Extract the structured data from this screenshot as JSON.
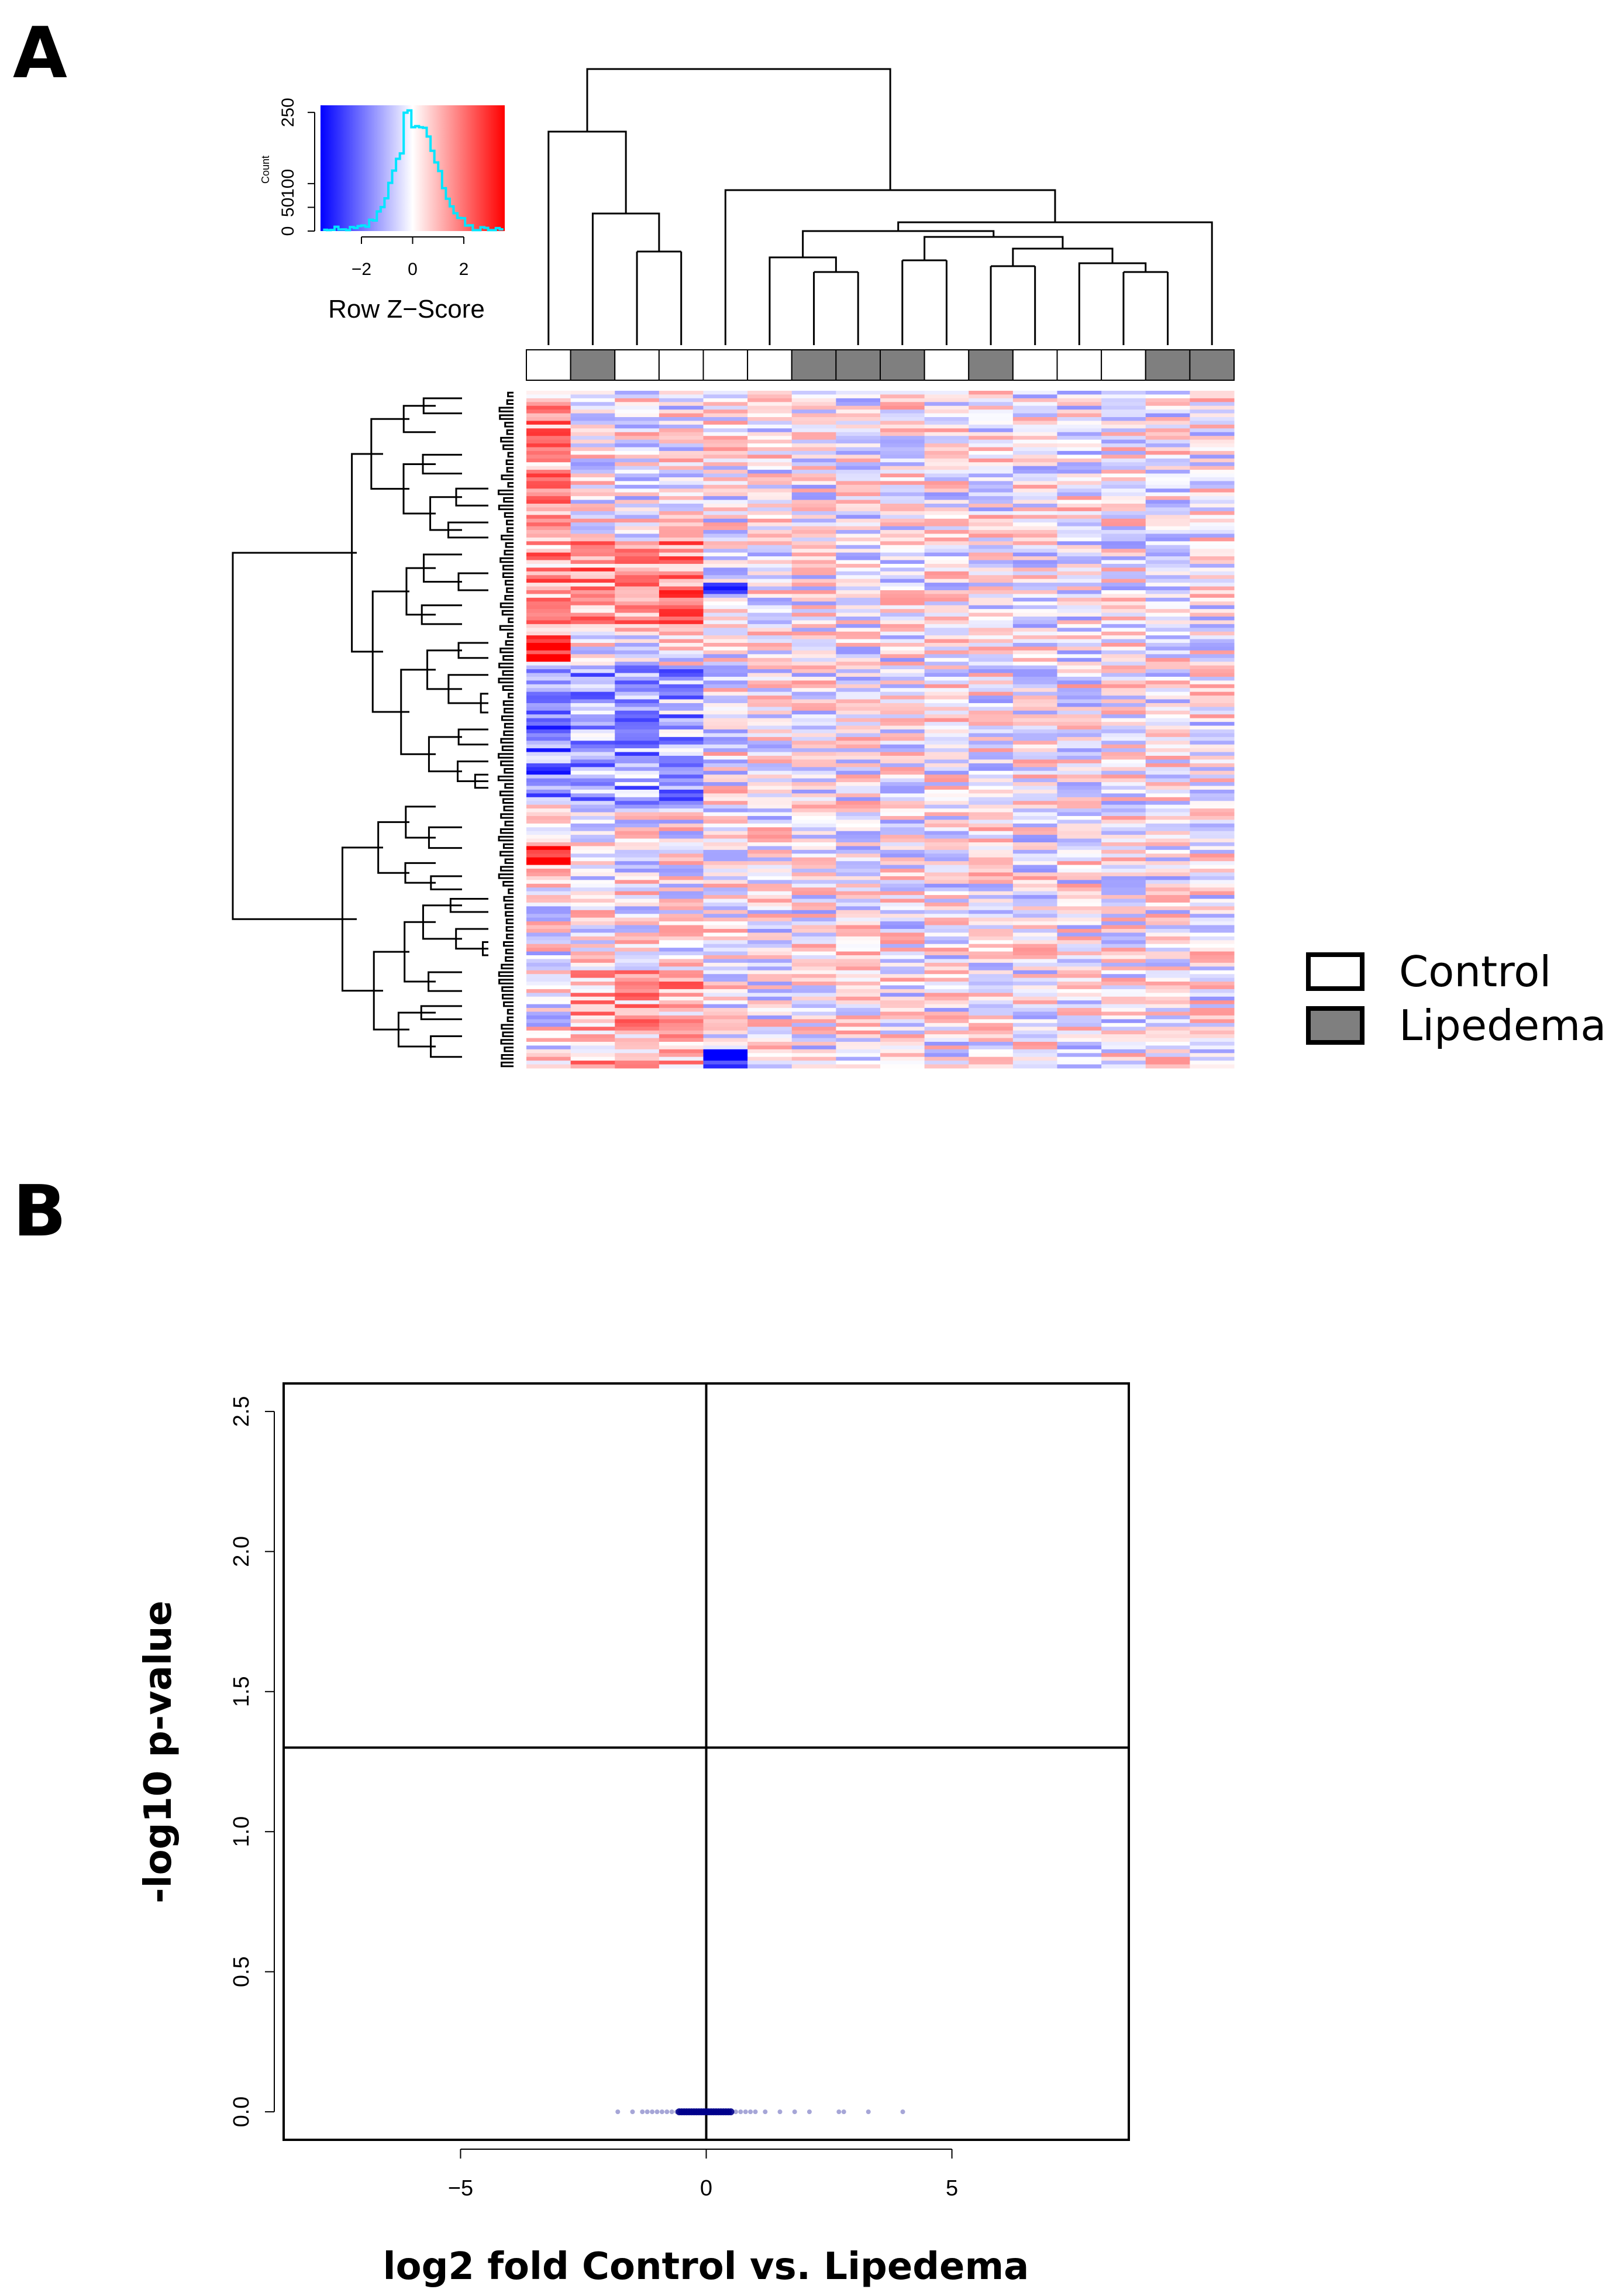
{
  "panel_a_label": "A",
  "panel_b_label": "B",
  "legend": {
    "control_label": "Control",
    "lipedema_label": "Lipedema",
    "control_color": "#ffffff",
    "lipedema_color": "#7f7f7f"
  },
  "chart_data": [
    {
      "type": "heatmap",
      "title": "",
      "color_scale": {
        "low": "#0000ff",
        "mid": "#ffffff",
        "high": "#ff0000"
      },
      "color_key": {
        "title": "Row Z−Score",
        "ylabel": "Count",
        "x_ticks": [
          "−2",
          "0",
          "2"
        ],
        "y_ticks": [
          "0",
          "50",
          "100",
          "250"
        ],
        "xlim": [
          -3.6,
          3.6
        ],
        "ylim": [
          0,
          265
        ]
      },
      "n_samples": 16,
      "sample_groups": [
        "Control",
        "Lipedema",
        "Control",
        "Control",
        "Control",
        "Control",
        "Lipedema",
        "Lipedema",
        "Lipedema",
        "Control",
        "Lipedema",
        "Control",
        "Control",
        "Control",
        "Lipedema",
        "Lipedema"
      ],
      "n_rows": 180,
      "row_dendrogram": true,
      "column_dendrogram": true
    },
    {
      "type": "scatter",
      "title": "",
      "xlabel": "log2 fold Control vs. Lipedema",
      "ylabel": "-log10 p-value",
      "xlim": [
        -8.6,
        8.6
      ],
      "ylim": [
        -0.1,
        2.6
      ],
      "x_ticks": [
        "−5",
        "0",
        "5"
      ],
      "y_ticks": [
        "0.0",
        "0.5",
        "1.0",
        "1.5",
        "2.0",
        "2.5"
      ],
      "reference_lines": {
        "vertical_x": 0,
        "horizontal_y": 1.3
      },
      "point_color": "#00008b",
      "points_y": 0,
      "points_x": [
        -1.8,
        -1.5,
        -1.3,
        -1.2,
        -1.1,
        -1.0,
        -0.9,
        -0.8,
        -0.7,
        -0.6,
        -0.55,
        -0.5,
        -0.45,
        -0.4,
        -0.35,
        -0.3,
        -0.25,
        -0.2,
        -0.15,
        -0.1,
        -0.05,
        0.0,
        0.05,
        0.1,
        0.15,
        0.2,
        0.25,
        0.3,
        0.35,
        0.4,
        0.45,
        0.5,
        0.6,
        0.7,
        0.8,
        0.9,
        1.0,
        1.2,
        1.5,
        1.8,
        2.1,
        2.7,
        2.8,
        3.3,
        4.0
      ]
    }
  ]
}
